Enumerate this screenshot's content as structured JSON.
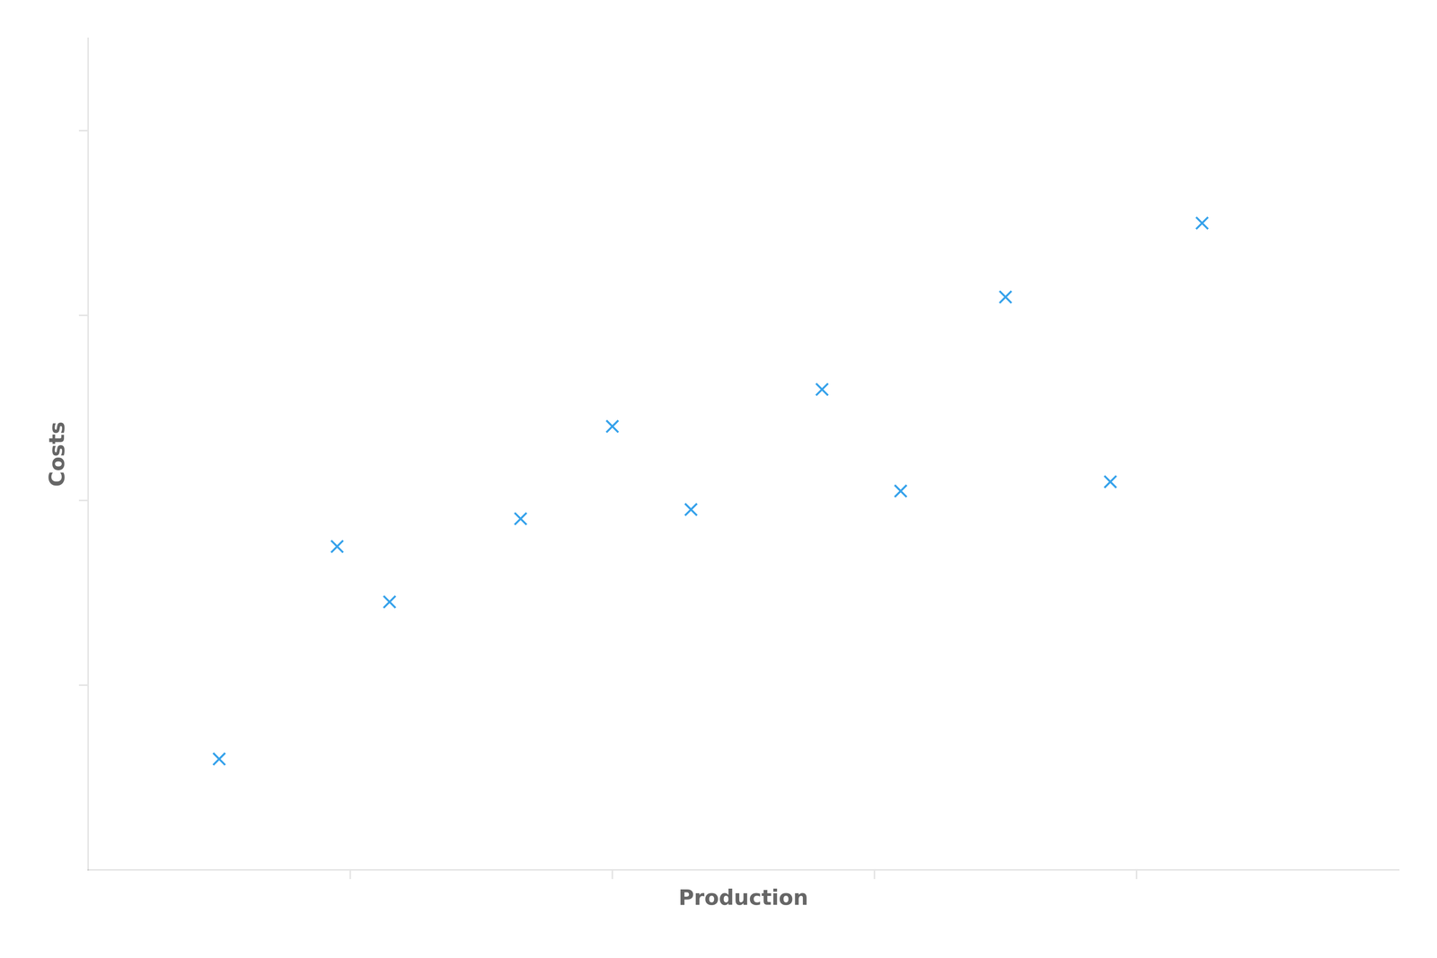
{
  "chart_data": {
    "type": "scatter",
    "x": [
      1.0,
      1.9,
      2.3,
      3.3,
      4.0,
      4.6,
      5.6,
      6.2,
      7.0,
      7.8,
      8.5
    ],
    "values": [
      1.2,
      3.5,
      2.9,
      3.8,
      4.8,
      3.9,
      5.2,
      4.1,
      6.2,
      4.2,
      7.0
    ],
    "xlabel": "Production",
    "ylabel": "Costs",
    "xlim": [
      0,
      10
    ],
    "ylim": [
      0,
      9
    ],
    "xticks": [
      2,
      4,
      6,
      8
    ],
    "yticks": [
      2,
      4,
      6,
      8
    ],
    "grid": false,
    "tick_labels": false,
    "marker": "x"
  }
}
